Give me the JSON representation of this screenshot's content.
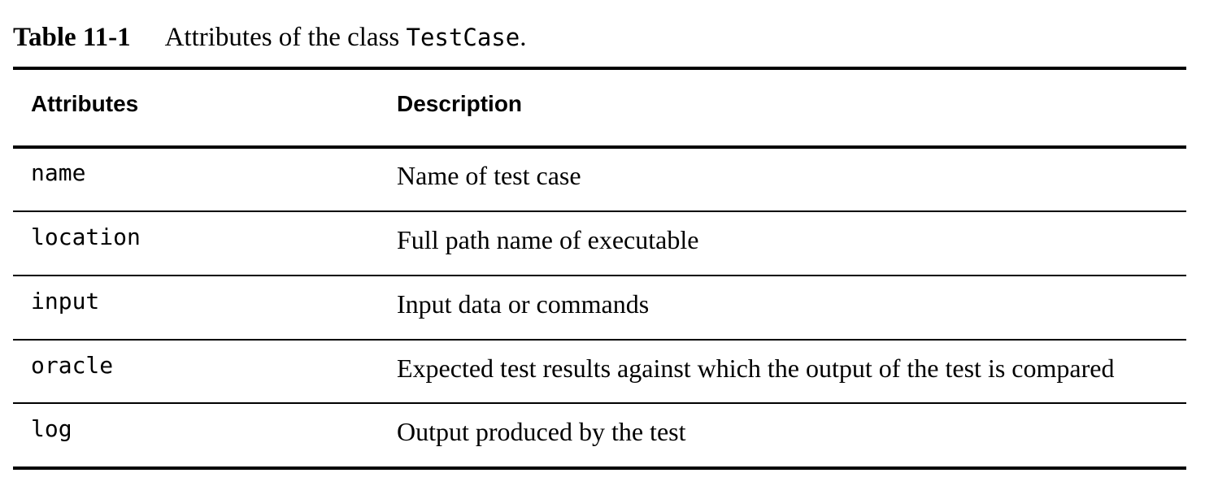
{
  "caption": {
    "label": "Table 11-1",
    "text_before": "Attributes of the class ",
    "code": "TestCase",
    "text_after": "."
  },
  "table": {
    "headers": [
      "Attributes",
      "Description"
    ],
    "rows": [
      {
        "attribute": "name",
        "description": "Name of test case"
      },
      {
        "attribute": "location",
        "description": "Full path name of executable"
      },
      {
        "attribute": "input",
        "description": "Input data or commands"
      },
      {
        "attribute": "oracle",
        "description": "Expected test results against which the output of the test is compared"
      },
      {
        "attribute": "log",
        "description": "Output produced by the test"
      }
    ]
  }
}
